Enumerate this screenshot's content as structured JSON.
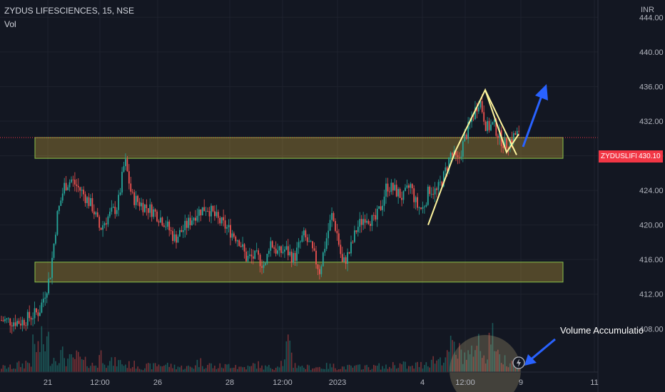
{
  "header": {
    "symbol_line": "ZYDUS LIFESCIENCES, 15, NSE",
    "indicator": "Vol",
    "currency": "INR"
  },
  "price_tag": {
    "symbol": "ZYDUSLIFE",
    "price": "430.10",
    "price_value": 430.1,
    "symbol_color": "#f23645",
    "price_color": "#f23645"
  },
  "annotation": {
    "text": "Volume Accumulatio"
  },
  "colors": {
    "up": "#26a69a",
    "down": "#ef5350",
    "zone_fill": "#f5c542",
    "zone_border": "#8bc34a",
    "pattern_line": "#fff59d",
    "arrow": "#2962ff",
    "grid": "#1e222d"
  },
  "chart_data": {
    "type": "candlestick",
    "ylim": [
      403,
      446
    ],
    "yticks": [
      "444.00",
      "440.00",
      "436.00",
      "432.00",
      "428.00",
      "424.00",
      "420.00",
      "416.00",
      "412.00",
      "408.00"
    ],
    "ytick_values": [
      444,
      440,
      436,
      432,
      428,
      424,
      420,
      416,
      412,
      408
    ],
    "xticks": [
      "21",
      "12:00",
      "26",
      "28",
      "12:00",
      "2023",
      "4",
      "12:00",
      "9",
      "11"
    ],
    "grid": true,
    "zones": [
      {
        "from": 427.7,
        "to": 430.1
      },
      {
        "from": 413.4,
        "to": 415.7
      }
    ],
    "current_price": 430.1,
    "price_path": [
      [
        0,
        409
      ],
      [
        30,
        408.8
      ],
      [
        55,
        410
      ],
      [
        70,
        414
      ],
      [
        80,
        421
      ],
      [
        90,
        424.5
      ],
      [
        100,
        425.2
      ],
      [
        115,
        423.8
      ],
      [
        130,
        422
      ],
      [
        140,
        419.5
      ],
      [
        150,
        420.8
      ],
      [
        165,
        422.2
      ],
      [
        175,
        427.5
      ],
      [
        185,
        423.2
      ],
      [
        200,
        422.3
      ],
      [
        215,
        421.6
      ],
      [
        230,
        420.4
      ],
      [
        245,
        418.4
      ],
      [
        260,
        419.8
      ],
      [
        275,
        421.4
      ],
      [
        290,
        422.1
      ],
      [
        305,
        420.6
      ],
      [
        320,
        419.5
      ],
      [
        335,
        418.3
      ],
      [
        345,
        416.2
      ],
      [
        360,
        416.3
      ],
      [
        372,
        415.2
      ],
      [
        378,
        418.2
      ],
      [
        390,
        416.7
      ],
      [
        400,
        417.2
      ],
      [
        412,
        416.1
      ],
      [
        425,
        418.8
      ],
      [
        435,
        417.5
      ],
      [
        448,
        414.7
      ],
      [
        456,
        417.9
      ],
      [
        465,
        421.1
      ],
      [
        472,
        419.2
      ],
      [
        480,
        415.4
      ],
      [
        490,
        416.9
      ],
      [
        500,
        419.6
      ],
      [
        512,
        421.1
      ],
      [
        525,
        420.3
      ],
      [
        535,
        422.4
      ],
      [
        542,
        424.6
      ],
      [
        555,
        423.9
      ],
      [
        565,
        423.1
      ],
      [
        575,
        424.6
      ],
      [
        584,
        422.2
      ],
      [
        592,
        421.8
      ],
      [
        602,
        424.2
      ],
      [
        612,
        423.8
      ],
      [
        622,
        425.6
      ],
      [
        632,
        428.3
      ],
      [
        642,
        427.3
      ],
      [
        652,
        430.2
      ],
      [
        662,
        432.4
      ],
      [
        672,
        434.6
      ],
      [
        682,
        431.2
      ],
      [
        692,
        431.6
      ],
      [
        700,
        430.2
      ],
      [
        708,
        429.2
      ],
      [
        716,
        429.9
      ],
      [
        724,
        430.6
      ],
      [
        729,
        430.1
      ]
    ],
    "volume_level": [
      0.1,
      0.1,
      0.15,
      0.2,
      0.5,
      0.6,
      0.3,
      0.35,
      0.25,
      0.3,
      0.2,
      0.15,
      0.35,
      0.2,
      0.2,
      0.15,
      0.15,
      0.1,
      0.12,
      0.15,
      0.15,
      0.12,
      0.1,
      0.1,
      0.2,
      0.15,
      0.1,
      0.12,
      0.15,
      0.1,
      0.1,
      0.15,
      0.1,
      0.1,
      0.2,
      0.5,
      0.15,
      0.1,
      0.1,
      0.1,
      0.12,
      0.1,
      0.1,
      0.1,
      0.12,
      0.1,
      0.12,
      0.1,
      0.15,
      0.15,
      0.1,
      0.15,
      0.2,
      0.25,
      0.3,
      0.5,
      0.4,
      0.35,
      0.6,
      0.4,
      0.7,
      0.3,
      0.25,
      0.2
    ]
  }
}
